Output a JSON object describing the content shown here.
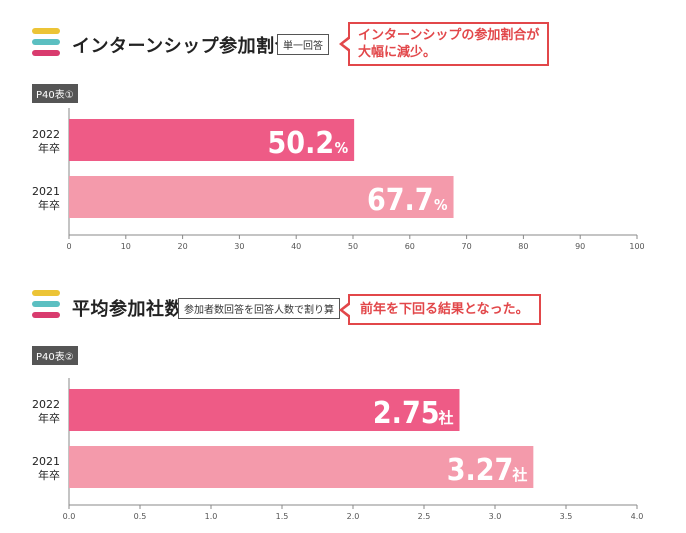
{
  "colors": {
    "yellow": "#ecc436",
    "teal": "#5bbfc1",
    "pink": "#d93b6e",
    "bar_2022": "#ee5b86",
    "bar_2021": "#f49aab",
    "accent": "#e2474a"
  },
  "section1": {
    "title": "インターンシップ参加割合",
    "tag": "単一回答",
    "callout_line1": "インターンシップの参加割合が",
    "callout_line2": "大幅に減少。",
    "ref": "P40表①"
  },
  "section2": {
    "title": "平均参加社数",
    "tag": "参加者数回答を回答人数で割り算",
    "callout_line1": "前年を下回る結果となった。",
    "ref": "P40表②"
  },
  "chart_data": [
    {
      "type": "bar",
      "orientation": "horizontal",
      "categories": [
        [
          "2022",
          "年卒"
        ],
        [
          "2021",
          "年卒"
        ]
      ],
      "values": [
        50.2,
        67.7
      ],
      "value_unit": "%",
      "xlim": [
        0,
        100
      ],
      "xticks": [
        "0",
        "10",
        "20",
        "30",
        "40",
        "50",
        "60",
        "70",
        "80",
        "90",
        "100"
      ],
      "bar_colors": [
        "#ee5b86",
        "#f49aab"
      ]
    },
    {
      "type": "bar",
      "orientation": "horizontal",
      "categories": [
        [
          "2022",
          "年卒"
        ],
        [
          "2021",
          "年卒"
        ]
      ],
      "values": [
        2.75,
        3.27
      ],
      "value_labels": [
        "2.75",
        "3.27"
      ],
      "value_unit": "社",
      "xlim": [
        0,
        4
      ],
      "xticks": [
        "0.0",
        "0.5",
        "1.0",
        "1.5",
        "2.0",
        "2.5",
        "3.0",
        "3.5",
        "4.0"
      ],
      "bar_colors": [
        "#ee5b86",
        "#f49aab"
      ]
    }
  ]
}
